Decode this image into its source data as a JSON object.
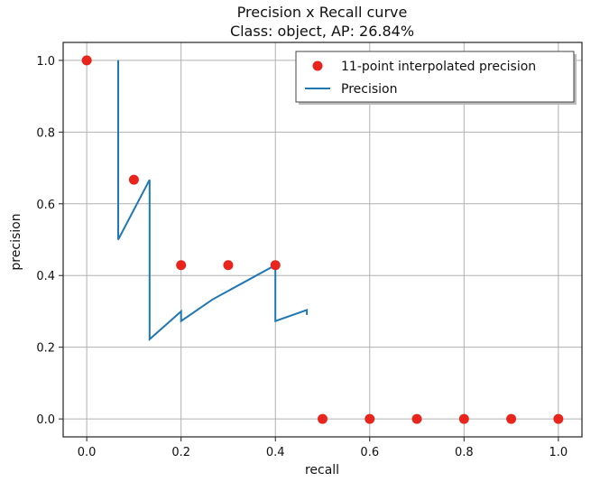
{
  "chart_data": {
    "type": "line",
    "title": "Precision x Recall curve",
    "subtitle": "Class: object, AP: 26.84%",
    "xlabel": "recall",
    "ylabel": "precision",
    "xlim": [
      -0.05,
      1.05
    ],
    "ylim": [
      -0.05,
      1.05
    ],
    "xticks": [
      0.0,
      0.2,
      0.4,
      0.6,
      0.8,
      1.0
    ],
    "yticks": [
      0.0,
      0.2,
      0.4,
      0.6,
      0.8,
      1.0
    ],
    "xtick_labels": [
      "0.0",
      "0.2",
      "0.4",
      "0.6",
      "0.8",
      "1.0"
    ],
    "ytick_labels": [
      "0.0",
      "0.2",
      "0.4",
      "0.6",
      "0.8",
      "1.0"
    ],
    "grid": true,
    "legend_position": "top-right",
    "series": [
      {
        "name": "11-point interpolated precision",
        "kind": "scatter",
        "color": "#e8241c",
        "x": [
          0.0,
          0.1,
          0.2,
          0.3,
          0.4,
          0.5,
          0.6,
          0.7,
          0.8,
          0.9,
          1.0
        ],
        "y": [
          1.0,
          0.667,
          0.429,
          0.429,
          0.429,
          0.0,
          0.0,
          0.0,
          0.0,
          0.0,
          0.0
        ]
      },
      {
        "name": "Precision",
        "kind": "line",
        "color": "#1f77b4",
        "x": [
          0.0667,
          0.0667,
          0.1333,
          0.1333,
          0.2,
          0.2,
          0.2667,
          0.4,
          0.4,
          0.4667,
          0.4667
        ],
        "y": [
          1.0,
          0.5,
          0.667,
          0.222,
          0.3,
          0.273,
          0.333,
          0.429,
          0.273,
          0.304,
          0.29
        ]
      }
    ]
  }
}
